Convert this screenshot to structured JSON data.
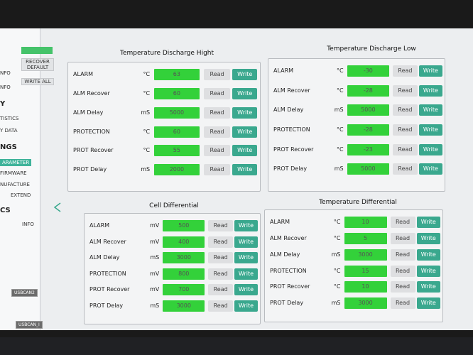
{
  "sidebar": {
    "items": [
      "NFO",
      "NFO",
      "Y",
      "TISTICS",
      "Y DATA",
      "NGS",
      "ARAMETER",
      "FIRMWARE",
      "NUFACTURE",
      "EXTEND",
      "CS",
      "INFO"
    ]
  },
  "toolbar": {
    "recover_default": "RECOVER DEFAULT",
    "write_all": "WRITE ALL"
  },
  "ports": [
    "USBCAN2",
    "USBCAN_I"
  ],
  "read_label": "Read",
  "write_label": "Write",
  "panels": [
    {
      "title": "Temperature Discharge Hight",
      "rows": [
        {
          "label": "ALARM",
          "unit": "°C",
          "value": "63"
        },
        {
          "label": "ALM Recover",
          "unit": "°C",
          "value": "60"
        },
        {
          "label": "ALM Delay",
          "unit": "mS",
          "value": "5000"
        },
        {
          "label": "PROTECTION",
          "unit": "°C",
          "value": "60"
        },
        {
          "label": "PROT Recover",
          "unit": "°C",
          "value": "55"
        },
        {
          "label": "PROT Delay",
          "unit": "mS",
          "value": "2000"
        }
      ]
    },
    {
      "title": "Temperature Discharge Low",
      "rows": [
        {
          "label": "ALARM",
          "unit": "°C",
          "value": "-30"
        },
        {
          "label": "ALM Recover",
          "unit": "°C",
          "value": "-28"
        },
        {
          "label": "ALM Delay",
          "unit": "mS",
          "value": "5000"
        },
        {
          "label": "PROTECTION",
          "unit": "°C",
          "value": "-28"
        },
        {
          "label": "PROT Recover",
          "unit": "°C",
          "value": "-23"
        },
        {
          "label": "PROT Delay",
          "unit": "mS",
          "value": "5000"
        }
      ]
    },
    {
      "title": "Cell Differential",
      "rows": [
        {
          "label": "ALARM",
          "unit": "mV",
          "value": "500"
        },
        {
          "label": "ALM Recover",
          "unit": "mV",
          "value": "400"
        },
        {
          "label": "ALM Delay",
          "unit": "mS",
          "value": "3000"
        },
        {
          "label": "PROTECTION",
          "unit": "mV",
          "value": "800"
        },
        {
          "label": "PROT Recover",
          "unit": "mV",
          "value": "700"
        },
        {
          "label": "PROT Delay",
          "unit": "mS",
          "value": "3000"
        }
      ]
    },
    {
      "title": "Temperature Differential",
      "rows": [
        {
          "label": "ALARM",
          "unit": "°C",
          "value": "10"
        },
        {
          "label": "ALM Recover",
          "unit": "°C",
          "value": "5"
        },
        {
          "label": "ALM Delay",
          "unit": "mS",
          "value": "3000"
        },
        {
          "label": "PROTECTION",
          "unit": "°C",
          "value": "15"
        },
        {
          "label": "PROT Recover",
          "unit": "°C",
          "value": "10"
        },
        {
          "label": "PROT Delay",
          "unit": "mS",
          "value": "3000"
        }
      ]
    }
  ]
}
